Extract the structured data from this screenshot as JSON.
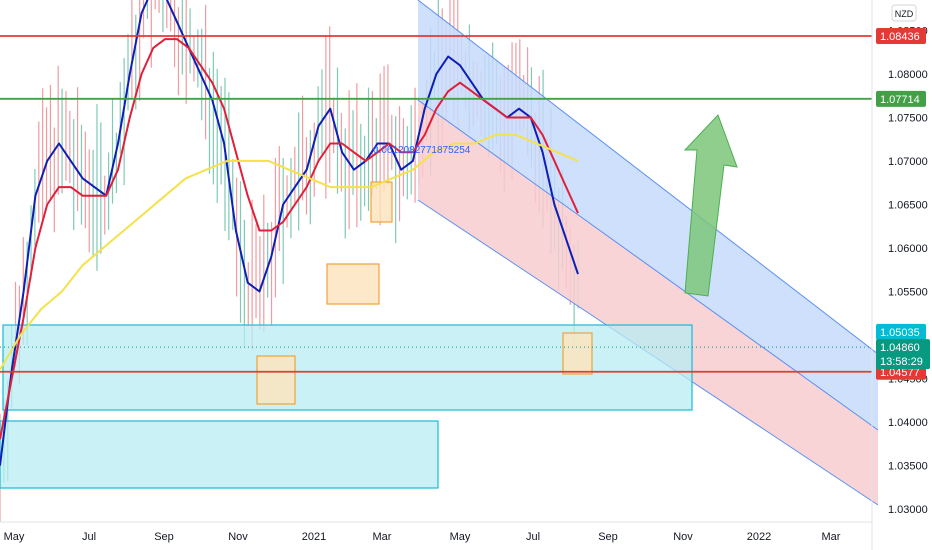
{
  "chart_data": {
    "type": "candlestick",
    "currency_label": "NZD",
    "x_ticks": [
      "May",
      "Jul",
      "Sep",
      "Nov",
      "2021",
      "Mar",
      "May",
      "Jul",
      "Sep",
      "Nov",
      "2022",
      "Mar"
    ],
    "y_ticks": [
      "1.08500",
      "1.08000",
      "1.07500",
      "1.07000",
      "1.06500",
      "1.06000",
      "1.05500",
      "1.04500",
      "1.04000",
      "1.03500",
      "1.03000"
    ],
    "ylim": [
      1.0285,
      1.0885
    ],
    "annotation_text": "0.0612082771875254",
    "price_levels": [
      {
        "label": "1.08436",
        "value": 1.08436,
        "color": "#e53935",
        "kind": "line"
      },
      {
        "label": "1.07714",
        "value": 1.07714,
        "color": "#43a047",
        "kind": "line"
      },
      {
        "label": "1.05035",
        "value": 1.05035,
        "color": "#00bcd4",
        "kind": "zone"
      },
      {
        "label": "1.04577",
        "value": 1.04577,
        "color": "#e53935",
        "kind": "line"
      }
    ],
    "current_price": {
      "label": "1.04860",
      "countdown": "13:58:29",
      "value": 1.0486,
      "color": "#089981"
    },
    "series": [
      {
        "color": "#0d1fb5",
        "values": [
          1.035,
          1.046,
          1.055,
          1.066,
          1.07,
          1.072,
          1.07,
          1.068,
          1.067,
          1.066,
          1.072,
          1.08,
          1.087,
          1.09,
          1.089,
          1.086,
          1.083,
          1.08,
          1.077,
          1.072,
          1.062,
          1.056,
          1.055,
          1.059,
          1.065,
          1.067,
          1.069,
          1.074,
          1.076,
          1.071,
          1.069,
          1.07,
          1.072,
          1.072,
          1.069,
          1.07,
          1.076,
          1.08,
          1.082,
          1.081,
          1.079,
          1.077,
          1.076,
          1.075,
          1.076,
          1.075,
          1.071,
          1.065,
          1.061,
          1.057
        ]
      },
      {
        "color": "#e0203a",
        "values": [
          1.038,
          1.045,
          1.052,
          1.06,
          1.065,
          1.067,
          1.067,
          1.066,
          1.066,
          1.066,
          1.069,
          1.075,
          1.08,
          1.083,
          1.084,
          1.084,
          1.083,
          1.081,
          1.079,
          1.076,
          1.071,
          1.066,
          1.062,
          1.062,
          1.063,
          1.065,
          1.067,
          1.07,
          1.072,
          1.072,
          1.071,
          1.07,
          1.071,
          1.072,
          1.071,
          1.071,
          1.073,
          1.076,
          1.078,
          1.079,
          1.078,
          1.077,
          1.076,
          1.075,
          1.075,
          1.075,
          1.073,
          1.07,
          1.067,
          1.064
        ]
      },
      {
        "color": "#f5e14a",
        "values": [
          1.046,
          1.05,
          1.053,
          1.055,
          1.058,
          1.06,
          1.062,
          1.064,
          1.066,
          1.068,
          1.069,
          1.07,
          1.07,
          1.07,
          1.069,
          1.068,
          1.067,
          1.067,
          1.067,
          1.068,
          1.069,
          1.071,
          1.072,
          1.072,
          1.073,
          1.073,
          1.072,
          1.071,
          1.07
        ]
      }
    ]
  }
}
